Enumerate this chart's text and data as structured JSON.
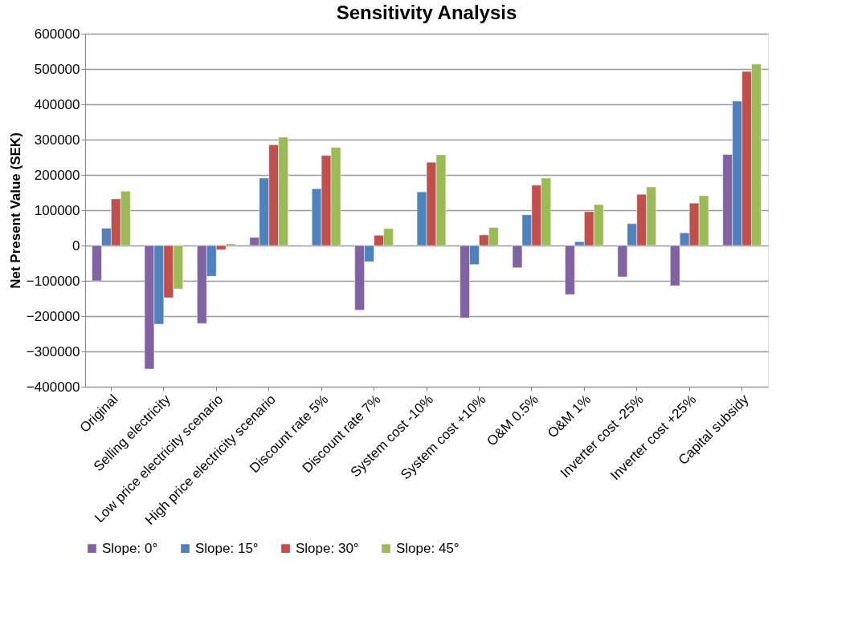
{
  "chart_data": {
    "type": "bar",
    "title": "Sensitivity Analysis",
    "ylabel": "Net Present Value (SEK)",
    "categories": [
      "Original",
      "Selling electricity",
      "Low price electricity scenario",
      "High price electricity scenario",
      "Discount rate 5%",
      "Discount rate 7%",
      "System cost -10%",
      "System cost +10%",
      "O&M 0.5%",
      "O&M 1%",
      "Inverter cost -25%",
      "Inverter cost +25%",
      "Capital subsidy"
    ],
    "series": [
      {
        "name": "Slope: 0°",
        "color": "#8064a2",
        "values": [
          -100000,
          -350000,
          -221000,
          23000,
          -3000,
          -183000,
          null,
          -205000,
          -63000,
          -139000,
          -89000,
          -114000,
          258000
        ]
      },
      {
        "name": "Slope: 15°",
        "color": "#4f81bd",
        "values": [
          49000,
          -223000,
          -87000,
          191000,
          161000,
          -46000,
          152000,
          -54000,
          87000,
          11000,
          62000,
          36000,
          409000
        ]
      },
      {
        "name": "Slope: 30°",
        "color": "#c0504d",
        "values": [
          132000,
          -148000,
          -12000,
          285000,
          255000,
          29000,
          236000,
          30000,
          171000,
          96000,
          145000,
          120000,
          493000
        ]
      },
      {
        "name": "Slope: 45°",
        "color": "#9bbb59",
        "values": [
          154000,
          -123000,
          5000,
          307000,
          278000,
          48000,
          257000,
          51000,
          191000,
          116000,
          166000,
          141000,
          514000
        ]
      }
    ],
    "ylim": [
      -400000,
      600000
    ],
    "yticks": [
      -400000,
      -300000,
      -200000,
      -100000,
      0,
      100000,
      200000,
      300000,
      400000,
      500000,
      600000
    ],
    "grid": "y",
    "legend": "bottom"
  }
}
